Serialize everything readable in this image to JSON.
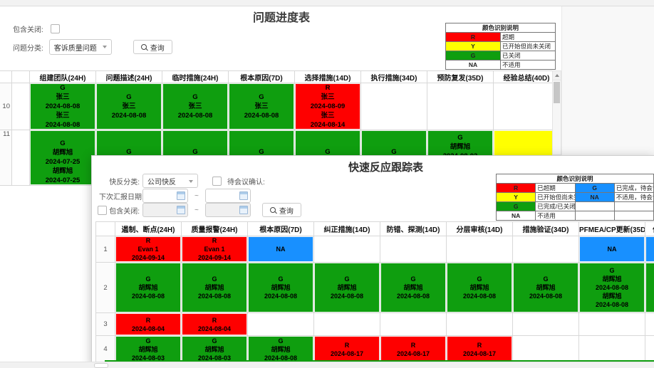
{
  "colors": {
    "red": "#fe0000",
    "yellow": "#ffff00",
    "green": "#0f9e0f",
    "blue": "#1890ff",
    "white": "#ffffff"
  },
  "progress_page": {
    "title": "问题进度表",
    "filters": {
      "include_closed_label": "包含关闭:",
      "category_label": "问题分类:",
      "category_value": "客诉质量问题",
      "query_label": "查询"
    },
    "legend": {
      "title": "颜色识别说明",
      "rows": [
        {
          "code": "R",
          "swatch": "red",
          "desc": "超期"
        },
        {
          "code": "Y",
          "swatch": "yellow",
          "desc": "已开始但尚未关闭"
        },
        {
          "code": "G",
          "swatch": "green",
          "desc": "已关闭"
        },
        {
          "code": "NA",
          "swatch": "white",
          "desc": "不适用"
        }
      ]
    },
    "table": {
      "headers": [
        "组建团队(24H)",
        "问题描述(24H)",
        "临时措施(24H)",
        "根本原因(7D)",
        "选择措施(14D)",
        "执行措施(34D)",
        "预防复发(35D)",
        "经验总结(40D)"
      ],
      "rows": [
        {
          "num": "10",
          "cells": [
            {
              "c": "green",
              "lines": [
                "G",
                "张三",
                "2024-08-08",
                "张三",
                "2024-08-08"
              ]
            },
            {
              "c": "green",
              "lines": [
                "G",
                "张三",
                "2024-08-08"
              ]
            },
            {
              "c": "green",
              "lines": [
                "G",
                "张三",
                "2024-08-08"
              ]
            },
            {
              "c": "green",
              "lines": [
                "G",
                "张三",
                "2024-08-08"
              ]
            },
            {
              "c": "red",
              "lines": [
                "R",
                "张三",
                "2024-08-09",
                "张三",
                "2024-08-14"
              ]
            },
            {
              "c": "white",
              "lines": []
            },
            {
              "c": "white",
              "lines": []
            },
            {
              "c": "white",
              "lines": []
            }
          ]
        },
        {
          "num": "11",
          "cells": [
            {
              "c": "green",
              "lines": [
                "G",
                "胡辉旭",
                "2024-07-25",
                "胡辉旭",
                "2024-07-25"
              ]
            },
            {
              "c": "green",
              "lines": [
                "G"
              ]
            },
            {
              "c": "green",
              "lines": [
                "G"
              ]
            },
            {
              "c": "green",
              "lines": [
                "G"
              ]
            },
            {
              "c": "green",
              "lines": [
                "G"
              ]
            },
            {
              "c": "green",
              "lines": [
                "G"
              ]
            },
            {
              "c": "green",
              "lines": [
                "G",
                "胡辉旭",
                "2024-08-03"
              ]
            },
            {
              "c": "yellow",
              "lines": []
            }
          ]
        }
      ]
    }
  },
  "qrqc_dialog": {
    "title": "快速反应跟踪表",
    "filters": {
      "class_label": "快反分类:",
      "class_value": "公司快反",
      "meeting_confirm_label": "待会议确认:",
      "next_report_label": "下次汇报日期:",
      "include_closed_label": "包含关闭:",
      "range_separator": "~",
      "date_from_value": "",
      "date_to_value": "",
      "query_label": "查询"
    },
    "legend": {
      "title": "颜色识别说明",
      "rows": [
        {
          "code1": "R",
          "swatch1": "red",
          "desc1": "已超期",
          "code2": "G",
          "swatch2": "blue",
          "desc2": "已完成，待会议确认"
        },
        {
          "code1": "Y",
          "swatch1": "yellow",
          "desc1": "已开始但尚未完成",
          "code2": "NA",
          "swatch2": "blue",
          "desc2": "不适用，待会议确认"
        },
        {
          "code1": "G",
          "swatch1": "green",
          "desc1": "已完成/已关闭",
          "code2": "",
          "swatch2": "white",
          "desc2": ""
        },
        {
          "code1": "NA",
          "swatch1": "white",
          "desc1": "不适用",
          "code2": "",
          "swatch2": "white",
          "desc2": ""
        }
      ]
    },
    "table": {
      "headers": [
        "遏制、断点(24H)",
        "质量报警(24H)",
        "根本原因(7D)",
        "纠正措施(14D)",
        "防错、探测(14D)",
        "分层审核(14D)",
        "措施验证(34D)",
        "PFMEA/CP更新(35D)",
        "作业"
      ],
      "rows": [
        {
          "num": "1",
          "cells": [
            {
              "c": "red",
              "lines": [
                "R",
                "Evan 1",
                "2024-09-14"
              ]
            },
            {
              "c": "red",
              "lines": [
                "R",
                "Evan 1",
                "2024-09-14"
              ]
            },
            {
              "c": "blue",
              "lines": [
                "NA"
              ]
            },
            {
              "c": "white",
              "lines": []
            },
            {
              "c": "white",
              "lines": []
            },
            {
              "c": "white",
              "lines": []
            },
            {
              "c": "white",
              "lines": []
            },
            {
              "c": "blue",
              "lines": [
                "NA"
              ]
            },
            {
              "c": "blue",
              "lines": []
            }
          ]
        },
        {
          "num": "2",
          "cells": [
            {
              "c": "green",
              "lines": [
                "G",
                "胡辉旭",
                "2024-08-08"
              ]
            },
            {
              "c": "green",
              "lines": [
                "G",
                "胡辉旭",
                "2024-08-08"
              ]
            },
            {
              "c": "green",
              "lines": [
                "G",
                "胡辉旭",
                "2024-08-08"
              ]
            },
            {
              "c": "green",
              "lines": [
                "G",
                "胡辉旭",
                "2024-08-08"
              ]
            },
            {
              "c": "green",
              "lines": [
                "G",
                "胡辉旭",
                "2024-08-08"
              ]
            },
            {
              "c": "green",
              "lines": [
                "G",
                "胡辉旭",
                "2024-08-08"
              ]
            },
            {
              "c": "green",
              "lines": [
                "G",
                "胡辉旭",
                "2024-08-08"
              ]
            },
            {
              "c": "green",
              "lines": [
                "G",
                "胡辉旭",
                "2024-08-08",
                "胡辉旭",
                "2024-08-08"
              ]
            },
            {
              "c": "green",
              "lines": []
            }
          ]
        },
        {
          "num": "3",
          "cells": [
            {
              "c": "red",
              "lines": [
                "R",
                "2024-08-04"
              ]
            },
            {
              "c": "red",
              "lines": [
                "R",
                "2024-08-04"
              ]
            },
            {
              "c": "white",
              "lines": []
            },
            {
              "c": "white",
              "lines": []
            },
            {
              "c": "white",
              "lines": []
            },
            {
              "c": "white",
              "lines": []
            },
            {
              "c": "white",
              "lines": []
            },
            {
              "c": "white",
              "lines": []
            },
            {
              "c": "white",
              "lines": []
            }
          ]
        },
        {
          "num": "4",
          "cells": [
            {
              "c": "green",
              "lines": [
                "G",
                "胡辉旭",
                "2024-08-03"
              ]
            },
            {
              "c": "green",
              "lines": [
                "G",
                "胡辉旭",
                "2024-08-03"
              ]
            },
            {
              "c": "green",
              "lines": [
                "G",
                "胡辉旭",
                "2024-08-08"
              ]
            },
            {
              "c": "red",
              "lines": [
                "R",
                "2024-08-17"
              ]
            },
            {
              "c": "red",
              "lines": [
                "R",
                "2024-08-17"
              ]
            },
            {
              "c": "red",
              "lines": [
                "R",
                "2024-08-17"
              ]
            },
            {
              "c": "white",
              "lines": []
            },
            {
              "c": "white",
              "lines": []
            },
            {
              "c": "white",
              "lines": []
            }
          ]
        }
      ]
    }
  }
}
